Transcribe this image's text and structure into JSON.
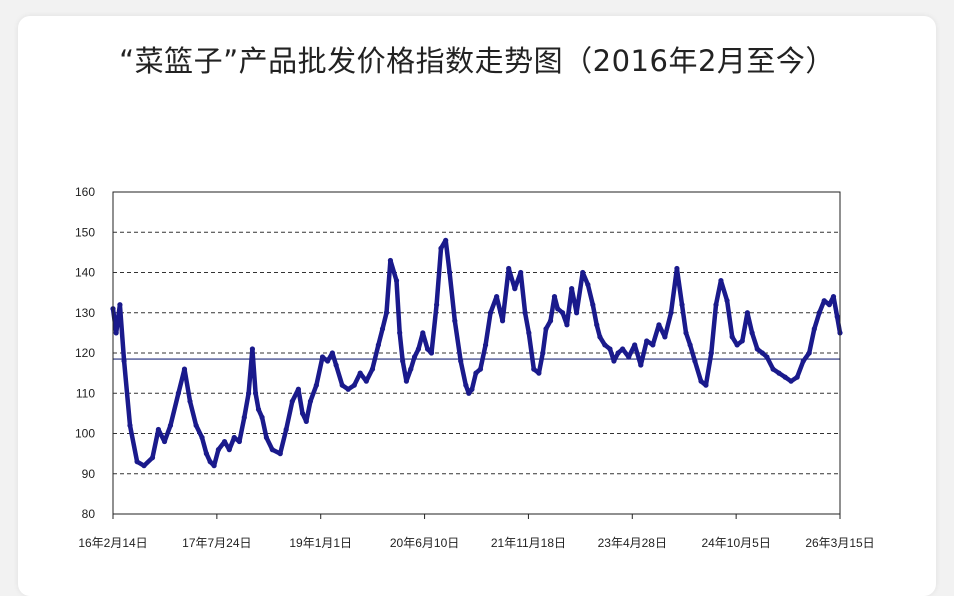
{
  "chart_data": {
    "type": "line",
    "title": "“菜篮子”产品批发价格指数走势图（2016年2月至今）",
    "xlabel": "",
    "ylabel": "",
    "ylim": [
      80,
      160
    ],
    "yticks": [
      80,
      90,
      100,
      110,
      120,
      130,
      140,
      150,
      160
    ],
    "xtick_labels": [
      "16年2月14日",
      "17年7月24日",
      "19年1月1日",
      "20年6月10日",
      "21年11月18日",
      "23年4月28日",
      "24年10月5日",
      "26年3月15日"
    ],
    "xlim": [
      "2016-02-14",
      "2026-03-15"
    ],
    "reference_line": 118.5,
    "grid": "dashed horizontal",
    "legend": "none",
    "line_color": "#1a1a8c",
    "series": [
      {
        "x": [
          "2016-02-14",
          "2016-03-01",
          "2016-03-20",
          "2016-04-10",
          "2016-05-10",
          "2016-06-15",
          "2016-07-20",
          "2016-09-01",
          "2016-10-01",
          "2016-11-01",
          "2016-12-01",
          "2017-01-10",
          "2017-02-10",
          "2017-03-10",
          "2017-04-10",
          "2017-05-10",
          "2017-06-01",
          "2017-06-20",
          "2017-07-10",
          "2017-08-01",
          "2017-09-01",
          "2017-09-25",
          "2017-10-20",
          "2017-11-15",
          "2017-12-10",
          "2018-01-01",
          "2018-01-20",
          "2018-02-05",
          "2018-02-20",
          "2018-03-10",
          "2018-04-01",
          "2018-05-01",
          "2018-06-10",
          "2018-07-10",
          "2018-08-10",
          "2018-09-10",
          "2018-10-01",
          "2018-10-20",
          "2018-11-10",
          "2018-12-10",
          "2019-01-10",
          "2019-02-05",
          "2019-03-01",
          "2019-03-20",
          "2019-04-20",
          "2019-05-20",
          "2019-06-20",
          "2019-07-20",
          "2019-08-20",
          "2019-09-20",
          "2019-10-20",
          "2019-11-10",
          "2019-11-30",
          "2019-12-20",
          "2020-01-20",
          "2020-02-05",
          "2020-02-20",
          "2020-03-10",
          "2020-04-01",
          "2020-04-20",
          "2020-05-10",
          "2020-06-01",
          "2020-06-25",
          "2020-07-15",
          "2020-08-10",
          "2020-09-01",
          "2020-09-25",
          "2020-10-15",
          "2020-11-10",
          "2020-12-10",
          "2021-01-05",
          "2021-01-20",
          "2021-02-05",
          "2021-02-25",
          "2021-03-20",
          "2021-04-15",
          "2021-05-10",
          "2021-06-10",
          "2021-07-10",
          "2021-08-10",
          "2021-09-10",
          "2021-10-10",
          "2021-11-01",
          "2021-11-20",
          "2021-12-15",
          "2022-01-10",
          "2022-01-30",
          "2022-02-15",
          "2022-03-10",
          "2022-03-30",
          "2022-04-15",
          "2022-05-10",
          "2022-06-01",
          "2022-06-25",
          "2022-07-20",
          "2022-08-20",
          "2022-09-15",
          "2022-10-10",
          "2022-10-30",
          "2022-11-15",
          "2022-12-10",
          "2023-01-05",
          "2023-01-25",
          "2023-02-15",
          "2023-03-10",
          "2023-04-10",
          "2023-05-10",
          "2023-06-10",
          "2023-07-10",
          "2023-08-10",
          "2023-09-10",
          "2023-10-10",
          "2023-11-10",
          "2023-12-10",
          "2024-01-05",
          "2024-01-25",
          "2024-02-15",
          "2024-03-10",
          "2024-04-10",
          "2024-05-05",
          "2024-06-01",
          "2024-06-25",
          "2024-07-20",
          "2024-08-20",
          "2024-09-15",
          "2024-10-10",
          "2024-11-05",
          "2024-12-01",
          "2024-12-25",
          "2025-01-20",
          "2025-02-15",
          "2025-03-10",
          "2025-04-10",
          "2025-05-10",
          "2025-06-10",
          "2025-07-10",
          "2025-08-10",
          "2025-09-10",
          "2025-10-10",
          "2025-11-05",
          "2025-11-30",
          "2025-12-25",
          "2026-01-20",
          "2026-02-10",
          "2026-03-01",
          "2026-03-15"
        ],
        "y": [
          131,
          125,
          132,
          118,
          102,
          93,
          92,
          94,
          101,
          98,
          102,
          110,
          116,
          108,
          102,
          99,
          95,
          93,
          92,
          96,
          98,
          96,
          99,
          98,
          104,
          110,
          121,
          110,
          106,
          104,
          99,
          96,
          95,
          101,
          108,
          111,
          105,
          103,
          108,
          112,
          119,
          118,
          120,
          117,
          112,
          111,
          112,
          115,
          113,
          116,
          122,
          126,
          130,
          143,
          138,
          125,
          118,
          113,
          116,
          119,
          121,
          125,
          121,
          120,
          132,
          146,
          148,
          140,
          128,
          118,
          112,
          110,
          111,
          115,
          116,
          122,
          130,
          134,
          128,
          141,
          136,
          140,
          130,
          125,
          116,
          115,
          120,
          126,
          128,
          134,
          131,
          130,
          127,
          136,
          130,
          140,
          137,
          132,
          127,
          124,
          122,
          121,
          118,
          120,
          121,
          119,
          122,
          117,
          123,
          122,
          127,
          124,
          130,
          141,
          132,
          125,
          122,
          118,
          113,
          112,
          120,
          132,
          138,
          133,
          124,
          122,
          123,
          130,
          125,
          121,
          120,
          119,
          116,
          115,
          114,
          113,
          114,
          118,
          120,
          126,
          130,
          133,
          132,
          134,
          129,
          125
        ]
      }
    ]
  }
}
